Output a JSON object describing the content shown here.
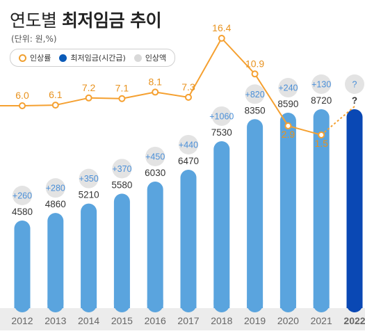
{
  "title": {
    "light": "연도별",
    "bold": "최저임금 추이"
  },
  "unit": "(단위: 원,%)",
  "legend": {
    "rate": "인상률",
    "wage": "최저임금(시간급)",
    "increase": "인상액"
  },
  "colors": {
    "bar": "#5aa4de",
    "bar_highlight": "#0a48b4",
    "line": "#f5a030",
    "bubble": "#e3e3e3",
    "axis_band": "#ececec"
  },
  "chart_data": {
    "type": "bar+line",
    "categories": [
      "2012",
      "2013",
      "2014",
      "2015",
      "2016",
      "2017",
      "2018",
      "2019",
      "2020",
      "2021",
      "2022"
    ],
    "series": [
      {
        "name": "최저임금(시간급)",
        "values": [
          4580,
          4860,
          5210,
          5580,
          6030,
          6470,
          7530,
          8350,
          8590,
          8720,
          null
        ],
        "labels": [
          "4580",
          "4860",
          "5210",
          "5580",
          "6030",
          "6470",
          "7530",
          "8350",
          "8590",
          "8720",
          "?"
        ]
      },
      {
        "name": "인상액",
        "values": [
          260,
          280,
          350,
          370,
          450,
          440,
          1060,
          820,
          240,
          130,
          null
        ],
        "labels": [
          "+260",
          "+280",
          "+350",
          "+370",
          "+450",
          "+440",
          "+1060",
          "+820",
          "+240",
          "+130",
          "?"
        ]
      },
      {
        "name": "인상률",
        "values": [
          6.0,
          6.1,
          7.2,
          7.1,
          8.1,
          7.3,
          16.4,
          10.9,
          2.9,
          1.5,
          null
        ],
        "labels": [
          "6.0",
          "6.1",
          "7.2",
          "7.1",
          "8.1",
          "7.3",
          "16.4",
          "10.9",
          "2.9",
          "1.5",
          ""
        ]
      }
    ],
    "highlight_category": "2022",
    "legend_position": "top-left"
  }
}
